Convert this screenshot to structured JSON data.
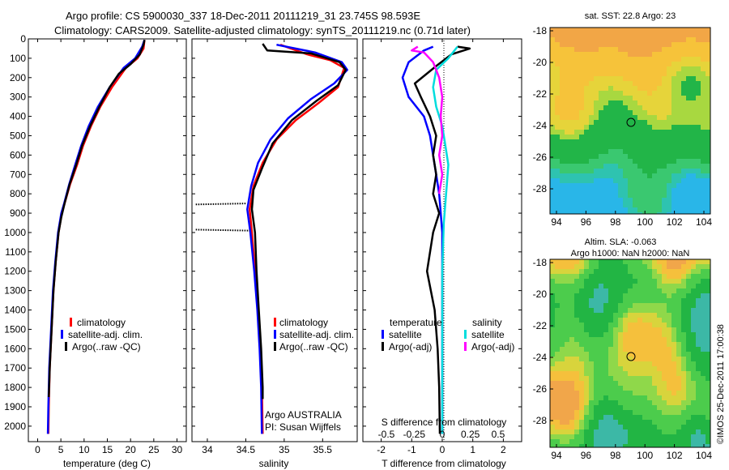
{
  "header": {
    "title_line1": "Argo profile: CS 5900030_337 18-Dec-2011 20111219_31 23.745S 98.593E",
    "title_line2": "Climatology: CARS2009. Satellite-adjusted climatology: synTS_20111219.nc (0.71d later)"
  },
  "colors": {
    "climatology": "#ff0000",
    "satellite": "#0000ff",
    "argo": "#000000",
    "satellite_salinity": "#00dddd",
    "argo_salinity": "#ff00ff"
  },
  "chart_data": [
    {
      "id": "temperature",
      "type": "line",
      "xlabel": "temperature (deg C)",
      "ylabel": "",
      "xlim": [
        -2,
        32
      ],
      "ylim": [
        2080,
        0
      ],
      "xticks": [
        0,
        5,
        10,
        15,
        20,
        25,
        30
      ],
      "yticks": [
        0,
        100,
        200,
        300,
        400,
        500,
        600,
        700,
        800,
        900,
        1000,
        1100,
        1200,
        1300,
        1400,
        1500,
        1600,
        1700,
        1800,
        1900,
        2000
      ],
      "legend": [
        "climatology",
        "satellite-adj. clim.",
        "Argo(..raw -QC)"
      ],
      "legend_placement": "lower-center",
      "series": [
        {
          "name": "climatology",
          "color": "#ff0000",
          "points": [
            [
              23,
              5
            ],
            [
              22.8,
              50
            ],
            [
              21.5,
              100
            ],
            [
              19,
              150
            ],
            [
              16,
              250
            ],
            [
              13.5,
              350
            ],
            [
              11.5,
              450
            ],
            [
              9.8,
              550
            ],
            [
              8.5,
              650
            ],
            [
              7,
              750
            ],
            [
              5.8,
              850
            ],
            [
              5.2,
              900
            ],
            [
              4.5,
              1000
            ],
            [
              3.9,
              1150
            ],
            [
              3.4,
              1300
            ],
            [
              3.0,
              1500
            ],
            [
              2.6,
              1700
            ],
            [
              2.4,
              1900
            ],
            [
              2.3,
              2040
            ]
          ]
        },
        {
          "name": "satellite-adj. clim.",
          "color": "#0000ff",
          "points": [
            [
              23,
              5
            ],
            [
              22.5,
              40
            ],
            [
              21,
              100
            ],
            [
              18.5,
              150
            ],
            [
              15.5,
              250
            ],
            [
              13,
              350
            ],
            [
              11,
              450
            ],
            [
              9.4,
              550
            ],
            [
              8.1,
              650
            ],
            [
              6.8,
              750
            ],
            [
              5.7,
              850
            ],
            [
              5.1,
              900
            ],
            [
              4.4,
              1000
            ],
            [
              3.8,
              1150
            ],
            [
              3.3,
              1300
            ],
            [
              2.9,
              1500
            ],
            [
              2.5,
              1700
            ],
            [
              2.3,
              1900
            ],
            [
              2.2,
              2040
            ]
          ]
        },
        {
          "name": "Argo(..raw -QC)",
          "color": "#000000",
          "points": [
            [
              23,
              5
            ],
            [
              22.8,
              30
            ],
            [
              22,
              80
            ],
            [
              20,
              130
            ],
            [
              17.5,
              180
            ],
            [
              15.5,
              250
            ],
            [
              13.3,
              350
            ],
            [
              11.3,
              450
            ],
            [
              9.6,
              550
            ],
            [
              8.3,
              650
            ],
            [
              6.9,
              750
            ],
            [
              5.8,
              850
            ],
            [
              5.1,
              920
            ],
            [
              4.5,
              1000
            ],
            [
              3.9,
              1150
            ],
            [
              3.4,
              1300
            ],
            [
              3.0,
              1500
            ],
            [
              2.6,
              1700
            ],
            [
              2.4,
              1850
            ]
          ]
        }
      ]
    },
    {
      "id": "salinity",
      "type": "line",
      "xlabel": "salinity",
      "ylabel": "",
      "xlim": [
        33.8,
        35.95
      ],
      "ylim": [
        2080,
        0
      ],
      "xticks": [
        34,
        34.5,
        35,
        35.5
      ],
      "legend": [
        "climatology",
        "satellite-adj. clim.",
        "Argo(..raw -QC)"
      ],
      "legend_placement": "lower-right",
      "annotation_lines": [
        "Argo AUSTRALIA",
        "PI: Susan Wijffels"
      ],
      "series": [
        {
          "name": "climatology",
          "color": "#ff0000",
          "points": [
            [
              34.95,
              30
            ],
            [
              35.3,
              80
            ],
            [
              35.6,
              110
            ],
            [
              35.78,
              150
            ],
            [
              35.7,
              250
            ],
            [
              35.45,
              330
            ],
            [
              35.15,
              420
            ],
            [
              34.9,
              520
            ],
            [
              34.72,
              640
            ],
            [
              34.6,
              760
            ],
            [
              34.55,
              880
            ],
            [
              34.58,
              1000
            ],
            [
              34.62,
              1200
            ],
            [
              34.66,
              1400
            ],
            [
              34.69,
              1600
            ],
            [
              34.71,
              1800
            ],
            [
              34.72,
              2040
            ]
          ]
        },
        {
          "name": "satellite-adj. clim.",
          "color": "#0000ff",
          "points": [
            [
              34.9,
              30
            ],
            [
              35.4,
              70
            ],
            [
              35.75,
              120
            ],
            [
              35.82,
              160
            ],
            [
              35.65,
              230
            ],
            [
              35.35,
              310
            ],
            [
              35.05,
              410
            ],
            [
              34.82,
              520
            ],
            [
              34.66,
              640
            ],
            [
              34.57,
              760
            ],
            [
              34.52,
              880
            ],
            [
              34.56,
              1000
            ],
            [
              34.61,
              1200
            ],
            [
              34.65,
              1400
            ],
            [
              34.68,
              1600
            ],
            [
              34.7,
              1800
            ],
            [
              34.71,
              2040
            ]
          ]
        },
        {
          "name": "Argo(..raw -QC)",
          "color": "#000000",
          "points": [
            [
              34.72,
              25
            ],
            [
              34.78,
              60
            ],
            [
              35.35,
              75
            ],
            [
              35.72,
              120
            ],
            [
              35.8,
              160
            ],
            [
              35.7,
              240
            ],
            [
              35.42,
              320
            ],
            [
              35.1,
              420
            ],
            [
              34.85,
              540
            ],
            [
              34.72,
              660
            ],
            [
              34.6,
              780
            ],
            [
              34.58,
              880
            ],
            [
              34.62,
              1000
            ],
            [
              34.64,
              1200
            ],
            [
              34.67,
              1400
            ],
            [
              34.7,
              1600
            ],
            [
              34.72,
              1800
            ],
            [
              34.72,
              1860
            ]
          ]
        },
        {
          "name": "Argo spike 850",
          "color": "#000000",
          "dotted": true,
          "points": [
            [
              33.85,
              855
            ],
            [
              34.5,
              850
            ]
          ]
        },
        {
          "name": "Argo spike 980",
          "color": "#000000",
          "dotted": true,
          "points": [
            [
              33.85,
              985
            ],
            [
              34.55,
              990
            ]
          ]
        }
      ]
    },
    {
      "id": "difference",
      "type": "line",
      "xlabel": "T difference from climatology",
      "xlabel_top": "S difference from climatology",
      "xlim": [
        -2.6,
        2.6
      ],
      "ylim": [
        2080,
        0
      ],
      "xticks": [
        -2,
        -1,
        0,
        1,
        2
      ],
      "xticks_s": [
        {
          "label": "-0.5",
          "x": -1.83
        },
        {
          "label": "-0.25",
          "x": -0.92
        },
        {
          "label": "0",
          "x": 0
        },
        {
          "label": "0.25",
          "x": 0.92
        },
        {
          "label": "0.5",
          "x": 1.83
        }
      ],
      "legend_titles": [
        "temperature",
        "salinity"
      ],
      "legend": [
        "satellite",
        "Argo(-adj)",
        "satellite",
        "Argo(-adj)"
      ],
      "legend_placement": "lower-center",
      "series": [
        {
          "name": "T satellite",
          "color": "#0000ff",
          "points": [
            [
              -0.3,
              40
            ],
            [
              -0.6,
              60
            ],
            [
              -1.1,
              120
            ],
            [
              -1.3,
              200
            ],
            [
              -1.1,
              300
            ],
            [
              -0.6,
              400
            ],
            [
              -0.4,
              500
            ],
            [
              -0.3,
              600
            ],
            [
              -0.2,
              700
            ],
            [
              -0.1,
              800
            ],
            [
              -0.05,
              900
            ],
            [
              0,
              1000
            ],
            [
              0,
              1200
            ],
            [
              0,
              2040
            ]
          ]
        },
        {
          "name": "T Argo(-adj)",
          "color": "#000000",
          "points": [
            [
              0.5,
              40
            ],
            [
              0.9,
              50
            ],
            [
              0.3,
              80
            ],
            [
              -0.2,
              140
            ],
            [
              -0.9,
              230
            ],
            [
              -0.7,
              300
            ],
            [
              -0.4,
              400
            ],
            [
              -0.2,
              500
            ],
            [
              -0.3,
              600
            ],
            [
              -0.2,
              700
            ],
            [
              -0.3,
              800
            ],
            [
              -0.1,
              900
            ],
            [
              -0.3,
              1000
            ],
            [
              -0.5,
              1200
            ],
            [
              -0.25,
              1400
            ],
            [
              -0.15,
              1600
            ],
            [
              -0.1,
              1800
            ],
            [
              -0.08,
              2040
            ]
          ]
        },
        {
          "name": "S satellite",
          "color": "#00dddd",
          "points": [
            [
              0.5,
              40
            ],
            [
              0.2,
              100
            ],
            [
              -0.2,
              160
            ],
            [
              -0.3,
              250
            ],
            [
              -0.2,
              350
            ],
            [
              0,
              450
            ],
            [
              0.1,
              550
            ],
            [
              0.2,
              650
            ],
            [
              0.15,
              750
            ],
            [
              0.1,
              850
            ],
            [
              0.05,
              950
            ],
            [
              0,
              1200
            ],
            [
              0,
              2040
            ]
          ]
        },
        {
          "name": "S Argo(-adj)",
          "color": "#ff00ff",
          "points": [
            [
              -0.8,
              40
            ],
            [
              -1,
              60
            ],
            [
              -0.6,
              70
            ],
            [
              -0.3,
              120
            ],
            [
              -0.1,
              200
            ],
            [
              0,
              300
            ],
            [
              -0.05,
              400
            ],
            [
              0,
              500
            ],
            [
              -0.1,
              600
            ],
            [
              0,
              700
            ],
            [
              -0.1,
              800
            ]
          ]
        }
      ]
    }
  ],
  "maps": {
    "sst": {
      "title": "sat. SST: 22.8 Argo: 23",
      "xticks": [
        "94",
        "96",
        "98",
        "100",
        "102",
        "104"
      ],
      "yticks": [
        "-18",
        "-20",
        "-22",
        "-24",
        "-26",
        "-28"
      ]
    },
    "sla": {
      "title_line1": "Altim. SLA: -0.063",
      "title_line2": "Argo h1000: NaN h2000: NaN",
      "xticks": [
        "94",
        "96",
        "98",
        "100",
        "102",
        "104"
      ],
      "yticks": [
        "-18",
        "-20",
        "-22",
        "-24",
        "-26",
        "-28"
      ]
    }
  },
  "footer": {
    "credit": "©IMOS 25-Dec-2011 17:00:38"
  }
}
